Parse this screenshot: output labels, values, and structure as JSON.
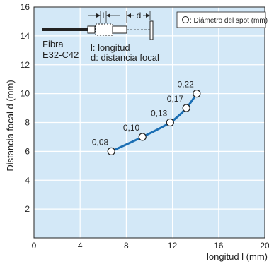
{
  "chart_data": {
    "type": "line",
    "ylabel": "Distancia focal d (mm)",
    "xlabel": "longitud l (mm)",
    "xlim": [
      0,
      20
    ],
    "ylim": [
      0,
      16
    ],
    "xticks": [
      "0",
      "4",
      "8",
      "12",
      "16",
      "20"
    ],
    "yticks": [
      "2",
      "4",
      "6",
      "8",
      "10",
      "12",
      "14",
      "16"
    ],
    "grid": true,
    "series": [
      {
        "x": [
          6.7,
          9.4,
          11.8,
          13.2,
          14.1
        ],
        "y": [
          6.0,
          7.0,
          8.0,
          9.0,
          10.0
        ],
        "labels": [
          "0,08",
          "0,10",
          "0,13",
          "0,17",
          "0,22"
        ]
      }
    ],
    "legend": {
      "text": ": Diámetro del spot (mm)",
      "position": "top-right"
    },
    "annotations": {
      "fiber": "Fibra\nE32-C42",
      "l_marker": "l",
      "d_marker": "d",
      "def_l": "l: longitud",
      "def_d": "d: distancia focal"
    },
    "colors": {
      "background": "#d3e8f7",
      "line": "#1b6fb4",
      "marker_fill": "#ffffff",
      "marker_edge": "#222222",
      "grid": "#ffffff"
    }
  }
}
